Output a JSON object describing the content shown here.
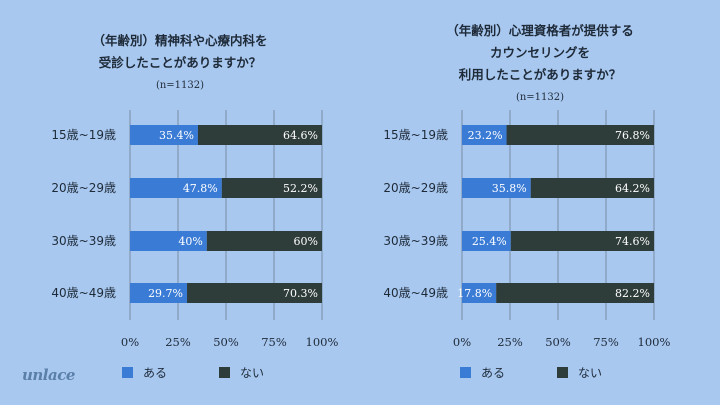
{
  "logo": "unlace",
  "colors": {
    "yes": "#3a7bd5",
    "no": "#2f3d3a",
    "background": "#a8c8f0",
    "grid": "#6e7f8f"
  },
  "chart_data": [
    {
      "type": "bar",
      "orientation": "horizontal-stacked-100",
      "title_lines": [
        "（年齢別）精神科や心療内科を",
        "受診したことがありますか？"
      ],
      "sample": "(n=1132)",
      "categories": [
        "15歳~19歳",
        "20歳~29歳",
        "30歳~39歳",
        "40歳~49歳"
      ],
      "series": [
        {
          "name": "ある",
          "values": [
            35.4,
            47.8,
            40,
            29.7
          ],
          "labels": [
            "35.4%",
            "47.8%",
            "40%",
            "29.7%"
          ]
        },
        {
          "name": "ない",
          "values": [
            64.6,
            52.2,
            60,
            70.3
          ],
          "labels": [
            "64.6%",
            "52.2%",
            "60%",
            "70.3%"
          ]
        }
      ],
      "xlim": [
        0,
        100
      ],
      "xticks": [
        "0%",
        "25%",
        "50%",
        "75%",
        "100%"
      ],
      "legend": [
        "ある",
        "ない"
      ]
    },
    {
      "type": "bar",
      "orientation": "horizontal-stacked-100",
      "title_lines": [
        "（年齢別）心理資格者が提供する",
        "カウンセリングを",
        "利用したことがありますか？"
      ],
      "sample": "(n=1132)",
      "categories": [
        "15歳~19歳",
        "20歳~29歳",
        "30歳~39歳",
        "40歳~49歳"
      ],
      "series": [
        {
          "name": "ある",
          "values": [
            23.2,
            35.8,
            25.4,
            17.8
          ],
          "labels": [
            "23.2%",
            "35.8%",
            "25.4%",
            "17.8%"
          ]
        },
        {
          "name": "ない",
          "values": [
            76.8,
            64.2,
            74.6,
            82.2
          ],
          "labels": [
            "76.8%",
            "64.2%",
            "74.6%",
            "82.2%"
          ]
        }
      ],
      "xlim": [
        0,
        100
      ],
      "xticks": [
        "0%",
        "25%",
        "50%",
        "75%",
        "100%"
      ],
      "legend": [
        "ある",
        "ない"
      ]
    }
  ]
}
